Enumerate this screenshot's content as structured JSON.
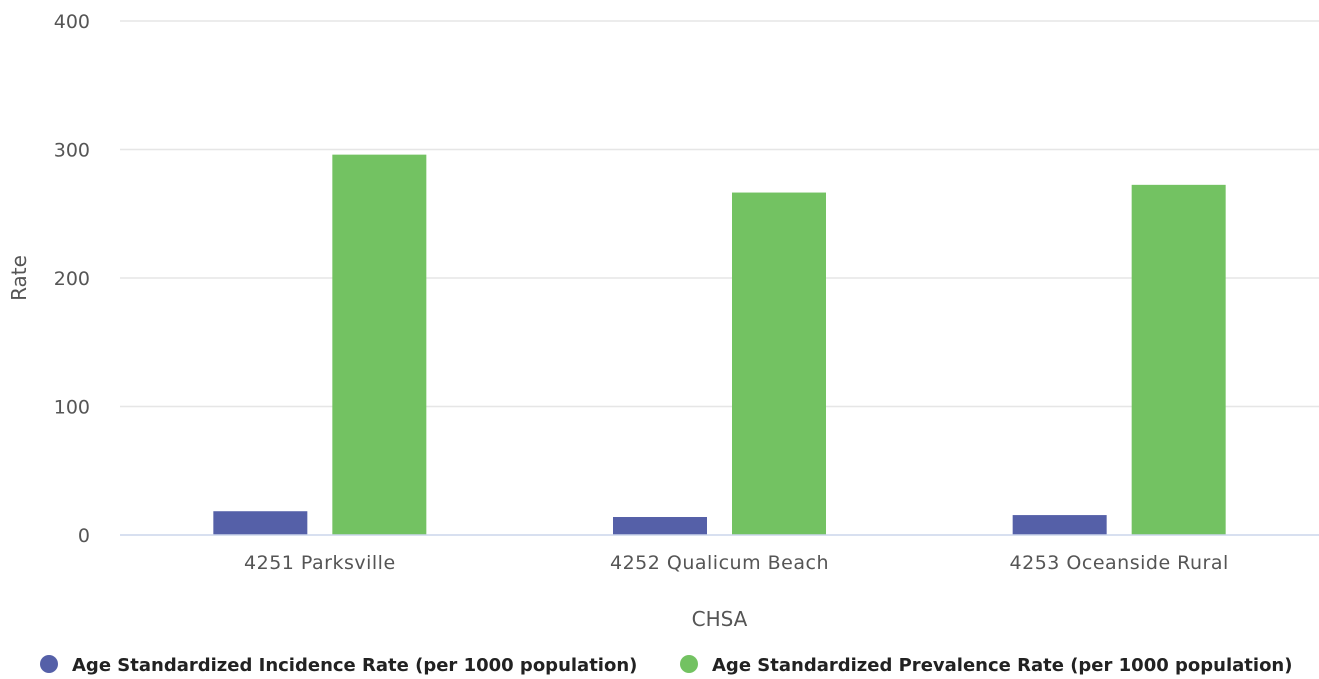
{
  "chart_data": {
    "type": "bar",
    "title": "",
    "xlabel": "CHSA",
    "ylabel": "Rate",
    "ylim": [
      0,
      400
    ],
    "yticks": [
      0,
      100,
      200,
      300,
      400
    ],
    "categories": [
      "4251 Parksville",
      "4252 Qualicum Beach",
      "4253 Oceanside Rural"
    ],
    "series": [
      {
        "name": "Age Standardized Incidence Rate (per 1000 population)",
        "color": "#5560a8",
        "values": [
          18.5,
          14,
          15.5
        ]
      },
      {
        "name": "Age Standardized Prevalence Rate (per 1000 population)",
        "color": "#73c262",
        "values": [
          296,
          266.5,
          272.5
        ]
      }
    ],
    "grid": true,
    "legend_position": "bottom"
  }
}
